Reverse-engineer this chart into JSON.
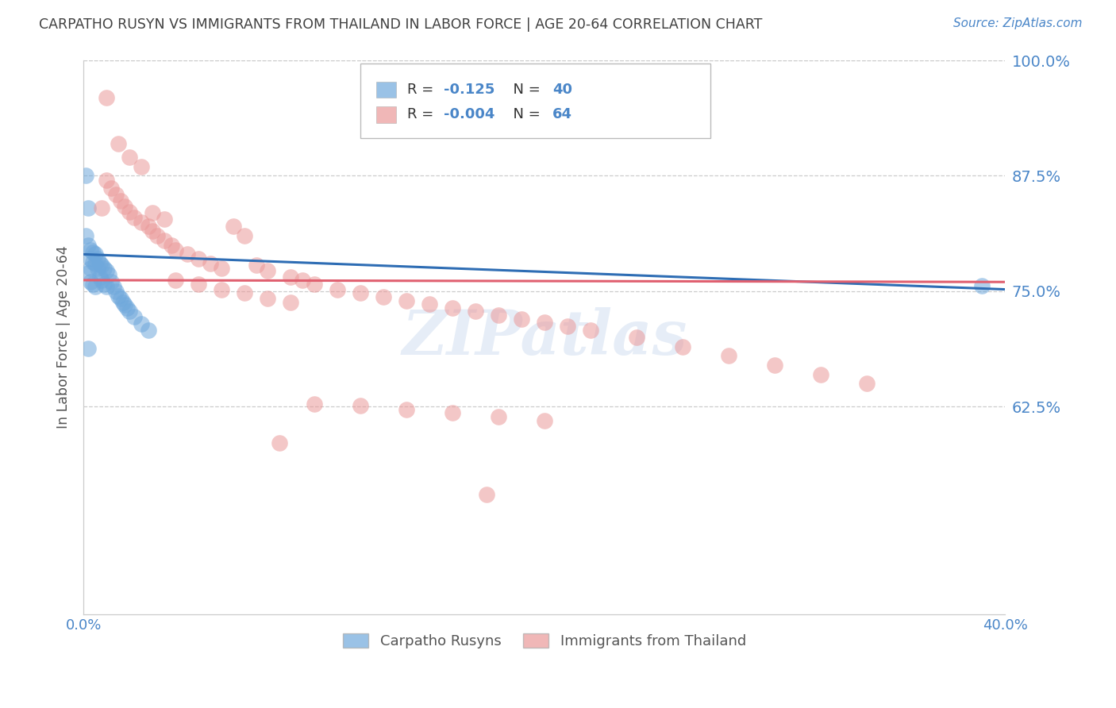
{
  "title": "CARPATHO RUSYN VS IMMIGRANTS FROM THAILAND IN LABOR FORCE | AGE 20-64 CORRELATION CHART",
  "source": "Source: ZipAtlas.com",
  "ylabel": "In Labor Force | Age 20-64",
  "xlim": [
    0.0,
    0.4
  ],
  "ylim": [
    0.4,
    1.0
  ],
  "ytick_positions": [
    0.625,
    0.75,
    0.875,
    1.0
  ],
  "ytick_labels": [
    "62.5%",
    "75.0%",
    "87.5%",
    "100.0%"
  ],
  "xtick_positions": [
    0.0,
    0.05,
    0.1,
    0.15,
    0.2,
    0.25,
    0.3,
    0.35,
    0.4
  ],
  "xtick_labels": [
    "0.0%",
    "",
    "",
    "",
    "",
    "",
    "",
    "",
    "40.0%"
  ],
  "grid_color": "#cccccc",
  "blue_color": "#6fa8dc",
  "pink_color": "#ea9999",
  "blue_R": -0.125,
  "blue_N": 40,
  "pink_R": -0.004,
  "pink_N": 64,
  "watermark": "ZIPatlas",
  "legend_label_blue": "Carpatho Rusyns",
  "legend_label_pink": "Immigrants from Thailand",
  "blue_trend_x": [
    0.0,
    0.4
  ],
  "blue_trend_y": [
    0.79,
    0.752
  ],
  "pink_trend_x": [
    0.0,
    0.4
  ],
  "pink_trend_y": [
    0.762,
    0.76
  ],
  "axis_color": "#4a86c8",
  "title_color": "#404040",
  "blue_scatter_x": [
    0.001,
    0.001,
    0.002,
    0.002,
    0.002,
    0.003,
    0.003,
    0.003,
    0.003,
    0.004,
    0.004,
    0.004,
    0.005,
    0.005,
    0.005,
    0.006,
    0.006,
    0.007,
    0.007,
    0.008,
    0.008,
    0.009,
    0.009,
    0.01,
    0.01,
    0.011,
    0.012,
    0.013,
    0.014,
    0.015,
    0.016,
    0.017,
    0.018,
    0.019,
    0.02,
    0.022,
    0.025,
    0.028,
    0.39,
    0.002
  ],
  "blue_scatter_y": [
    0.875,
    0.81,
    0.84,
    0.8,
    0.77,
    0.795,
    0.785,
    0.775,
    0.76,
    0.792,
    0.782,
    0.758,
    0.79,
    0.78,
    0.755,
    0.785,
    0.775,
    0.78,
    0.765,
    0.778,
    0.762,
    0.775,
    0.758,
    0.772,
    0.755,
    0.768,
    0.76,
    0.755,
    0.75,
    0.745,
    0.742,
    0.738,
    0.735,
    0.732,
    0.728,
    0.722,
    0.715,
    0.708,
    0.756,
    0.688
  ],
  "pink_scatter_x": [
    0.008,
    0.01,
    0.012,
    0.014,
    0.016,
    0.018,
    0.02,
    0.022,
    0.025,
    0.028,
    0.03,
    0.032,
    0.035,
    0.038,
    0.04,
    0.045,
    0.05,
    0.055,
    0.06,
    0.065,
    0.07,
    0.075,
    0.08,
    0.09,
    0.095,
    0.1,
    0.11,
    0.12,
    0.13,
    0.14,
    0.15,
    0.16,
    0.17,
    0.18,
    0.19,
    0.2,
    0.21,
    0.22,
    0.24,
    0.26,
    0.28,
    0.3,
    0.32,
    0.34,
    0.01,
    0.015,
    0.02,
    0.025,
    0.03,
    0.035,
    0.04,
    0.05,
    0.06,
    0.07,
    0.08,
    0.09,
    0.1,
    0.12,
    0.14,
    0.16,
    0.18,
    0.2,
    0.085,
    0.175
  ],
  "pink_scatter_y": [
    0.84,
    0.87,
    0.862,
    0.855,
    0.848,
    0.842,
    0.836,
    0.83,
    0.825,
    0.82,
    0.815,
    0.81,
    0.805,
    0.8,
    0.795,
    0.79,
    0.785,
    0.78,
    0.775,
    0.82,
    0.81,
    0.778,
    0.772,
    0.765,
    0.762,
    0.758,
    0.752,
    0.748,
    0.744,
    0.74,
    0.736,
    0.732,
    0.728,
    0.724,
    0.72,
    0.716,
    0.712,
    0.708,
    0.7,
    0.69,
    0.68,
    0.67,
    0.66,
    0.65,
    0.96,
    0.91,
    0.895,
    0.885,
    0.835,
    0.828,
    0.762,
    0.758,
    0.752,
    0.748,
    0.742,
    0.738,
    0.628,
    0.626,
    0.622,
    0.618,
    0.614,
    0.61,
    0.586,
    0.53
  ]
}
